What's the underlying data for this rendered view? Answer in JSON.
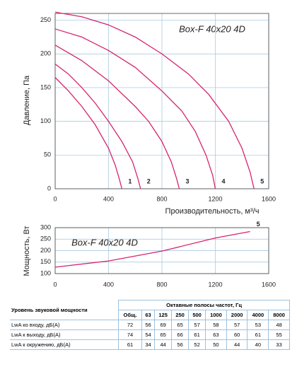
{
  "chart_data": [
    {
      "type": "line",
      "annotation": "Box-F 40x20 4D",
      "x_label": "Производительность, м³/ч",
      "y_label": "Давление, Па",
      "xlim": [
        0,
        1600
      ],
      "xticks": [
        0,
        400,
        800,
        1200,
        1600
      ],
      "ylim": [
        0,
        260
      ],
      "yticks": [
        0,
        50,
        100,
        150,
        200,
        250
      ],
      "grid": true,
      "series": [
        {
          "name": "1",
          "color": "#d6246e",
          "x": [
            0,
            100,
            200,
            300,
            400,
            450,
            480,
            500
          ],
          "values": [
            165,
            145,
            122,
            95,
            60,
            35,
            15,
            0
          ]
        },
        {
          "name": "2",
          "color": "#d6246e",
          "x": [
            0,
            100,
            200,
            300,
            400,
            500,
            580,
            620,
            640
          ],
          "values": [
            185,
            170,
            150,
            127,
            100,
            70,
            40,
            15,
            0
          ]
        },
        {
          "name": "3",
          "color": "#d6246e",
          "x": [
            0,
            200,
            400,
            600,
            700,
            800,
            870,
            910,
            930
          ],
          "values": [
            213,
            190,
            160,
            122,
            100,
            70,
            40,
            15,
            0
          ]
        },
        {
          "name": "4",
          "color": "#d6246e",
          "x": [
            0,
            200,
            400,
            600,
            800,
            950,
            1050,
            1130,
            1180,
            1200
          ],
          "values": [
            237,
            225,
            205,
            180,
            145,
            115,
            85,
            50,
            20,
            0
          ]
        },
        {
          "name": "5",
          "color": "#d6246e",
          "x": [
            0,
            200,
            400,
            600,
            800,
            1000,
            1150,
            1300,
            1400,
            1460,
            1490
          ],
          "values": [
            262,
            255,
            243,
            225,
            200,
            170,
            140,
            100,
            60,
            25,
            0
          ]
        }
      ]
    },
    {
      "type": "line",
      "annotation": "Box-F 40x20 4D",
      "y_label": "Мощность, Вт",
      "xlim": [
        0,
        1600
      ],
      "xticks": [
        0,
        400,
        800,
        1200,
        1600
      ],
      "ylim": [
        100,
        300
      ],
      "yticks": [
        100,
        150,
        200,
        250,
        300
      ],
      "grid": true,
      "series": [
        {
          "name": "5",
          "color": "#d6246e",
          "x": [
            0,
            400,
            800,
            1200,
            1460
          ],
          "values": [
            128,
            155,
            198,
            255,
            283
          ]
        }
      ]
    }
  ],
  "table": {
    "row_header": "Уровень звуковой мощности",
    "band_header": "Октавные полосы частот, Гц",
    "columns": [
      "Общ.",
      "63",
      "125",
      "250",
      "500",
      "1000",
      "2000",
      "4000",
      "8000"
    ],
    "rows": [
      {
        "label": "LwA ко входу, дБ(А)",
        "values": [
          72,
          56,
          69,
          65,
          57,
          58,
          57,
          53,
          48
        ]
      },
      {
        "label": "LwA к выходу, дБ(А)",
        "values": [
          74,
          54,
          65,
          66,
          61,
          63,
          60,
          61,
          55
        ]
      },
      {
        "label": "LwA к окружению, дБ(А)",
        "values": [
          61,
          34,
          44,
          56,
          52,
          50,
          44,
          40,
          33
        ]
      }
    ]
  }
}
